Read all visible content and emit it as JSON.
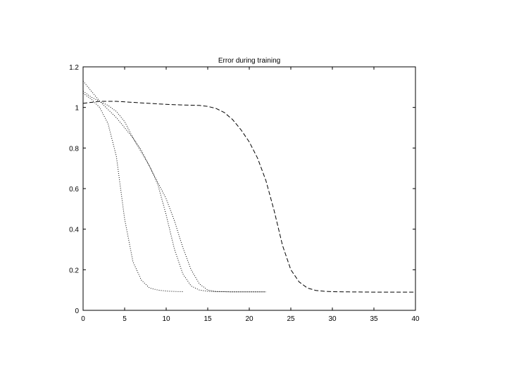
{
  "chart_data": {
    "type": "line",
    "title": "Error during training",
    "xlabel": "",
    "ylabel": "",
    "xlim": [
      0,
      40
    ],
    "ylim": [
      0,
      1.2
    ],
    "x_ticks": [
      "0",
      "5",
      "10",
      "15",
      "20",
      "25",
      "30",
      "35",
      "40"
    ],
    "y_ticks": [
      "0",
      "0.2",
      "0.4",
      "0.6",
      "0.8",
      "1",
      "1.2"
    ],
    "legend": false,
    "grid": false,
    "series": [
      {
        "style": "dotted",
        "x": [
          0,
          1,
          2,
          3,
          4,
          5,
          6,
          7,
          8,
          9,
          10,
          11,
          12
        ],
        "y": [
          1.07,
          1.04,
          1.0,
          0.92,
          0.76,
          0.45,
          0.24,
          0.15,
          0.11,
          0.1,
          0.095,
          0.093,
          0.092
        ]
      },
      {
        "style": "dotted",
        "x": [
          0,
          2,
          4,
          6,
          7,
          8,
          9,
          10,
          11,
          12,
          13,
          14,
          15,
          16,
          17,
          18,
          20,
          22
        ],
        "y": [
          1.13,
          1.03,
          0.95,
          0.85,
          0.79,
          0.71,
          0.62,
          0.47,
          0.3,
          0.18,
          0.12,
          0.1,
          0.094,
          0.092,
          0.092,
          0.091,
          0.091,
          0.091
        ]
      },
      {
        "style": "dotted",
        "x": [
          0,
          1,
          2,
          3,
          4,
          5,
          6,
          7,
          8,
          9,
          10,
          11,
          12,
          13,
          14,
          15,
          16,
          18,
          20,
          22
        ],
        "y": [
          1.08,
          1.05,
          1.03,
          1.01,
          0.98,
          0.93,
          0.85,
          0.78,
          0.71,
          0.63,
          0.55,
          0.44,
          0.31,
          0.2,
          0.13,
          0.1,
          0.093,
          0.091,
          0.091,
          0.091
        ]
      },
      {
        "style": "dashed",
        "x": [
          0,
          2,
          4,
          6,
          8,
          10,
          12,
          14,
          15,
          16,
          17,
          18,
          19,
          20,
          21,
          22,
          23,
          24,
          25,
          26,
          27,
          28,
          29,
          30,
          32,
          35,
          40
        ],
        "y": [
          1.02,
          1.03,
          1.03,
          1.025,
          1.02,
          1.015,
          1.012,
          1.01,
          1.005,
          0.995,
          0.975,
          0.94,
          0.89,
          0.83,
          0.75,
          0.64,
          0.49,
          0.32,
          0.2,
          0.14,
          0.11,
          0.098,
          0.094,
          0.092,
          0.091,
          0.09,
          0.09
        ]
      }
    ]
  }
}
